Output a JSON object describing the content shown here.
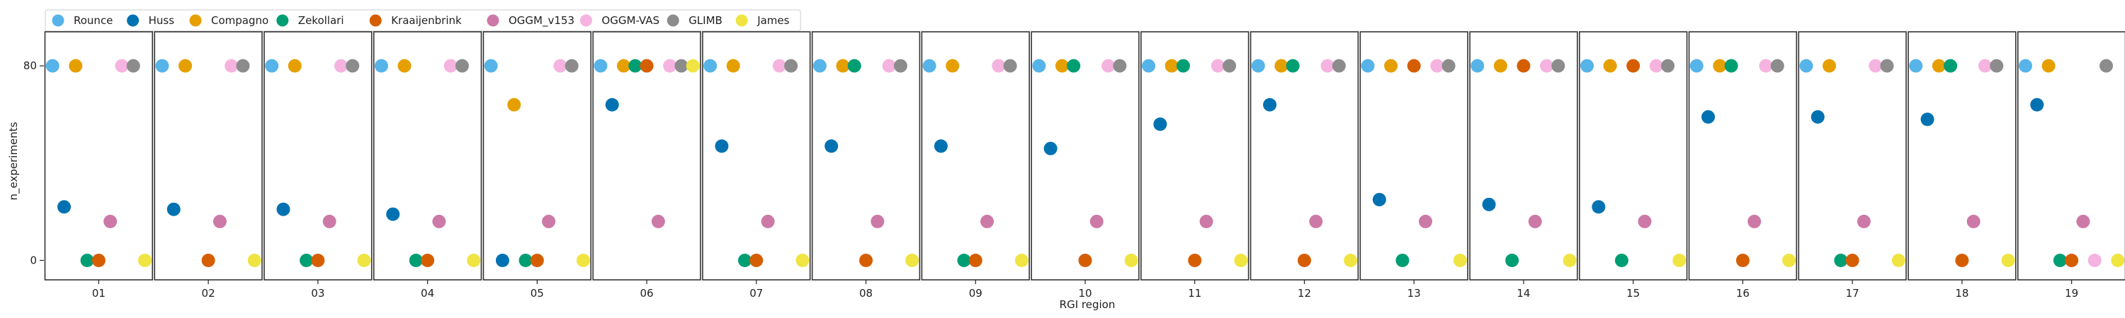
{
  "chart_data": {
    "type": "scatter",
    "title": "",
    "xlabel": "RGI region",
    "ylabel": "n_experiments",
    "yticks": [
      0,
      80
    ],
    "ylim": [
      -8,
      94
    ],
    "grid": false,
    "legend_position": "top-left",
    "categories": [
      "01",
      "02",
      "03",
      "04",
      "05",
      "06",
      "07",
      "08",
      "09",
      "10",
      "11",
      "12",
      "13",
      "14",
      "15",
      "16",
      "17",
      "18",
      "19"
    ],
    "series": [
      {
        "name": "Rounce",
        "color": "#56b4e9",
        "values": [
          80,
          80,
          80,
          80,
          80,
          80,
          80,
          80,
          80,
          80,
          80,
          80,
          80,
          80,
          80,
          80,
          80,
          80,
          80
        ]
      },
      {
        "name": "Huss",
        "color": "#0072b2",
        "values": [
          22,
          21,
          21,
          19,
          0,
          64,
          47,
          47,
          47,
          46,
          56,
          64,
          25,
          23,
          22,
          59,
          59,
          58,
          64
        ]
      },
      {
        "name": "Compagno",
        "color": "#e69f00",
        "values": [
          80,
          80,
          80,
          80,
          64,
          80,
          80,
          80,
          80,
          80,
          80,
          80,
          80,
          80,
          80,
          80,
          80,
          80,
          80
        ]
      },
      {
        "name": "Zekollari",
        "color": "#009e73",
        "values": [
          0,
          null,
          0,
          0,
          0,
          80,
          0,
          80,
          0,
          80,
          80,
          80,
          0,
          0,
          0,
          80,
          0,
          80,
          0
        ]
      },
      {
        "name": "Kraaijenbrink",
        "color": "#d55e00",
        "values": [
          0,
          0,
          0,
          0,
          0,
          80,
          0,
          0,
          0,
          0,
          0,
          0,
          80,
          80,
          80,
          0,
          0,
          0,
          0
        ]
      },
      {
        "name": "OGGM_v153",
        "color": "#cc79a7",
        "values": [
          16,
          16,
          16,
          16,
          16,
          16,
          16,
          16,
          16,
          16,
          16,
          16,
          16,
          16,
          16,
          16,
          16,
          16,
          16
        ]
      },
      {
        "name": "OGGM-VAS",
        "color": "#f5b3e0",
        "values": [
          80,
          80,
          80,
          80,
          80,
          80,
          80,
          80,
          80,
          80,
          80,
          80,
          80,
          80,
          80,
          80,
          80,
          80,
          0
        ]
      },
      {
        "name": "GLIMB",
        "color": "#8c8c8c",
        "values": [
          80,
          80,
          80,
          80,
          80,
          80,
          80,
          80,
          80,
          80,
          80,
          80,
          80,
          80,
          80,
          80,
          80,
          80,
          80
        ]
      },
      {
        "name": "James",
        "color": "#f0e442",
        "values": [
          0,
          0,
          0,
          0,
          0,
          80,
          0,
          0,
          0,
          0,
          0,
          0,
          0,
          0,
          0,
          0,
          0,
          0,
          0
        ]
      }
    ]
  }
}
